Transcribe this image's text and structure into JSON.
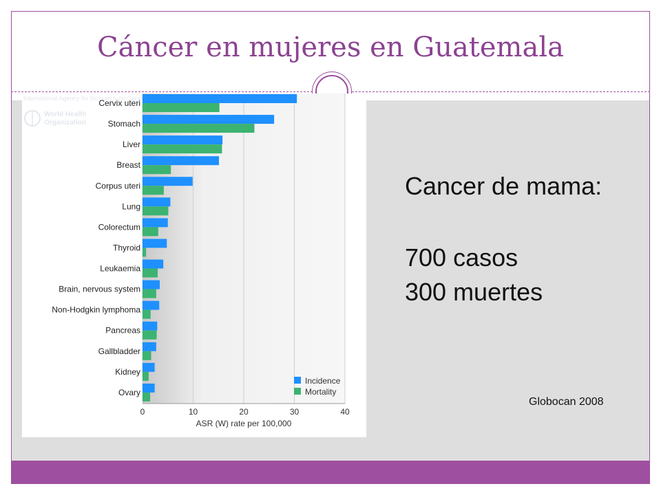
{
  "slide": {
    "title": "Cáncer en mujeres en Guatemala",
    "heading": "Cancer de mama:",
    "cases": "700 casos",
    "deaths": "300 muertes",
    "source": "Globocan 2008"
  },
  "logo": {
    "agency": "International Agency for Research on Cancer",
    "who_line1": "World Health",
    "who_line2": "Organization"
  },
  "colors": {
    "accent": "#9b4f9e",
    "incidence": "#1e90ff",
    "mortality": "#3cb371"
  },
  "chart_data": {
    "type": "bar",
    "orientation": "horizontal",
    "categories": [
      "Cervix uteri",
      "Stomach",
      "Liver",
      "Breast",
      "Corpus uteri",
      "Lung",
      "Colorectum",
      "Thyroid",
      "Leukaemia",
      "Brain, nervous system",
      "Non-Hodgkin lymphoma",
      "Pancreas",
      "Gallbladder",
      "Kidney",
      "Ovary"
    ],
    "series": [
      {
        "name": "Incidence",
        "values": [
          30.5,
          26.0,
          15.8,
          15.1,
          9.9,
          5.5,
          5.0,
          4.8,
          4.1,
          3.4,
          3.3,
          2.9,
          2.7,
          2.4,
          2.4
        ]
      },
      {
        "name": "Mortality",
        "values": [
          15.2,
          22.1,
          15.7,
          5.6,
          4.2,
          5.1,
          3.1,
          0.7,
          3.0,
          2.7,
          1.6,
          2.8,
          1.7,
          1.2,
          1.5
        ]
      }
    ],
    "xlabel": "ASR (W) rate per 100,000",
    "ylabel": "",
    "xlim": [
      0,
      40
    ],
    "xticks": [
      "0",
      "10",
      "20",
      "30",
      "40"
    ],
    "legend_position": "bottom-right",
    "grid": true
  }
}
